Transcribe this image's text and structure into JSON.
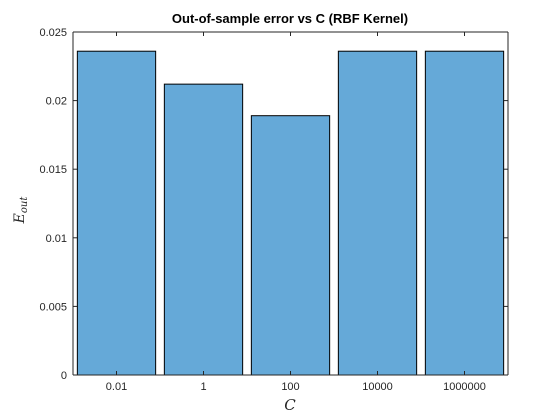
{
  "chart_data": {
    "type": "bar",
    "title": "Out-of-sample error vs C (RBF Kernel)",
    "xlabel": "C",
    "ylabel": "E_out",
    "ylabel_main": "E",
    "ylabel_sub": "out",
    "categories": [
      "0.01",
      "1",
      "100",
      "10000",
      "1000000"
    ],
    "values": [
      0.0236,
      0.0212,
      0.0189,
      0.0236,
      0.0236
    ],
    "ylim": [
      0,
      0.025
    ],
    "yticks": [
      0,
      0.005,
      0.01,
      0.015,
      0.02,
      0.025
    ],
    "ytick_labels": [
      "0",
      "0.005",
      "0.01",
      "0.015",
      "0.02",
      "0.025"
    ],
    "bar_color": "#65a9d8",
    "bar_edge_color": "#000000",
    "grid": false,
    "legend": "none"
  }
}
